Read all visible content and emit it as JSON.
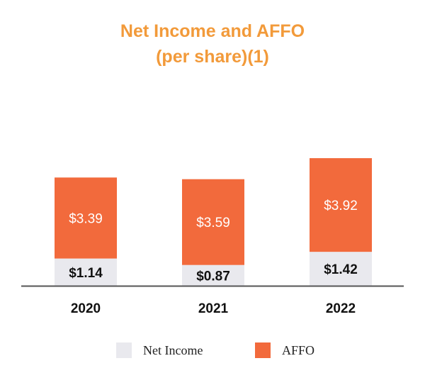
{
  "chart_data": {
    "type": "bar",
    "stacked": true,
    "title": "Net Income and AFFO",
    "subtitle": "(per share)(1)",
    "categories": [
      "2020",
      "2021",
      "2022"
    ],
    "series": [
      {
        "name": "Net Income",
        "values": [
          1.14,
          0.87,
          1.42
        ],
        "color": "#E9E9EE",
        "labels": [
          "$1.14",
          "$0.87",
          "$1.42"
        ]
      },
      {
        "name": "AFFO",
        "values": [
          3.39,
          3.59,
          3.92
        ],
        "color": "#F26A3C",
        "labels": [
          "$3.39",
          "$3.59",
          "$3.92"
        ]
      }
    ],
    "legend": "bottom",
    "grid": false
  }
}
